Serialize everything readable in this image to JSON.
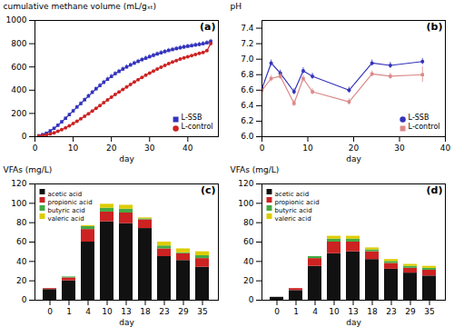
{
  "chart_data": [
    {
      "type": "line",
      "title": "(a)",
      "xlabel": "day",
      "ylabel": "cumulative methane volume (mL/gₓₜ)",
      "xlim": [
        0,
        48
      ],
      "xticks": [
        0,
        10,
        20,
        30,
        40
      ],
      "ylim": [
        0,
        1000
      ],
      "yticks": [
        0,
        200,
        400,
        600,
        800,
        1000
      ],
      "legend": "lower right",
      "series": [
        {
          "name": "L-SSB",
          "color": "#3333bb",
          "marker": "square",
          "x": [
            1,
            2,
            3,
            4,
            5,
            6,
            7,
            8,
            9,
            10,
            11,
            12,
            13,
            14,
            15,
            16,
            17,
            18,
            19,
            20,
            21,
            22,
            23,
            24,
            25,
            26,
            27,
            28,
            29,
            30,
            31,
            32,
            33,
            34,
            35,
            36,
            37,
            38,
            39,
            40,
            41,
            42,
            43,
            44,
            45,
            46
          ],
          "values": [
            8,
            18,
            30,
            50,
            72,
            98,
            128,
            158,
            190,
            222,
            255,
            285,
            318,
            350,
            382,
            412,
            440,
            468,
            494,
            518,
            542,
            562,
            582,
            600,
            617,
            633,
            648,
            663,
            675,
            688,
            700,
            712,
            722,
            732,
            742,
            750,
            758,
            765,
            772,
            778,
            783,
            789,
            794,
            800,
            808,
            820
          ],
          "errors": [
            3,
            4,
            5,
            7,
            8,
            9,
            11,
            12,
            13,
            14,
            15,
            16,
            16,
            17,
            17,
            17,
            18,
            18,
            18,
            18,
            18,
            18,
            18,
            18,
            18,
            18,
            18,
            18,
            18,
            18,
            18,
            18,
            18,
            18,
            18,
            18,
            18,
            18,
            18,
            18,
            18,
            18,
            18,
            18,
            18,
            18
          ]
        },
        {
          "name": "L-control",
          "color": "#cc2222",
          "marker": "circle",
          "x": [
            1,
            2,
            3,
            4,
            5,
            6,
            7,
            8,
            9,
            10,
            11,
            12,
            13,
            14,
            15,
            16,
            17,
            18,
            19,
            20,
            21,
            22,
            23,
            24,
            25,
            26,
            27,
            28,
            29,
            30,
            31,
            32,
            33,
            34,
            35,
            36,
            37,
            38,
            39,
            40,
            41,
            42,
            43,
            44,
            45,
            46
          ],
          "values": [
            5,
            10,
            16,
            24,
            34,
            46,
            60,
            76,
            94,
            113,
            133,
            154,
            176,
            198,
            221,
            244,
            268,
            292,
            316,
            340,
            363,
            385,
            407,
            428,
            449,
            470,
            490,
            510,
            529,
            547,
            565,
            582,
            598,
            613,
            628,
            642,
            655,
            667,
            678,
            688,
            698,
            707,
            716,
            724,
            740,
            800
          ],
          "errors": [
            1,
            2,
            2,
            3,
            3,
            3,
            3,
            4,
            4,
            4,
            4,
            4,
            4,
            4,
            4,
            4,
            4,
            4,
            4,
            4,
            4,
            4,
            4,
            4,
            4,
            4,
            4,
            4,
            4,
            4,
            4,
            4,
            4,
            4,
            4,
            4,
            4,
            4,
            4,
            4,
            4,
            4,
            4,
            4,
            4,
            4
          ]
        }
      ]
    },
    {
      "type": "line",
      "title": "(b)",
      "xlabel": "day",
      "ylabel": "pH",
      "xlim": [
        0,
        40
      ],
      "xticks": [
        0,
        10,
        20,
        30,
        40
      ],
      "ylim": [
        6.0,
        7.5
      ],
      "yticks": [
        {
          "value": 6,
          "label": "6.0"
        },
        6.2,
        6.4,
        6.6,
        6.8,
        {
          "value": 7,
          "label": "7.0"
        },
        7.2,
        7.4
      ],
      "legend": "lower right",
      "series": [
        {
          "name": "L-SSB",
          "color": "#3333bb",
          "marker": "circle",
          "x": [
            0,
            2,
            4,
            7,
            9,
            11,
            19,
            24,
            28,
            35
          ],
          "values": [
            6.62,
            6.95,
            6.82,
            6.58,
            6.85,
            6.78,
            6.6,
            6.95,
            6.92,
            6.97
          ],
          "errors": [
            0.04,
            0.04,
            0.04,
            0.04,
            0.04,
            0.04,
            0.04,
            0.04,
            0.04,
            0.04
          ]
        },
        {
          "name": "L-control",
          "color": "#dd8888",
          "marker": "square",
          "x": [
            0,
            2,
            4,
            7,
            9,
            11,
            19,
            24,
            28,
            35
          ],
          "values": [
            6.6,
            6.75,
            6.78,
            6.43,
            6.75,
            6.58,
            6.45,
            6.81,
            6.78,
            6.8
          ],
          "errors": [
            0.04,
            0.04,
            0.04,
            0.04,
            0.04,
            0.04,
            0.04,
            0.04,
            0.04,
            0.1
          ]
        }
      ]
    },
    {
      "type": "bar",
      "stacked": true,
      "title": "(c)",
      "xlabel": "day",
      "ylabel": "VFAs (mg/L)",
      "categories": [
        "0",
        "1",
        "4",
        "10",
        "13",
        "18",
        "23",
        "29",
        "35"
      ],
      "ylim": [
        0,
        120
      ],
      "yticks": [
        0,
        20,
        40,
        60,
        80,
        100,
        120
      ],
      "legend": "upper left",
      "series": [
        {
          "name": "acetic acid",
          "color": "#111111",
          "values": [
            11,
            20,
            60,
            81,
            79,
            74,
            45,
            41,
            34
          ]
        },
        {
          "name": "propionic acid",
          "color": "#cc2222",
          "values": [
            1,
            3,
            13,
            10,
            11,
            9,
            8,
            7,
            9
          ]
        },
        {
          "name": "butyric acid",
          "color": "#44aa44",
          "values": [
            0,
            1,
            3,
            4,
            4,
            1,
            3,
            1,
            3
          ]
        },
        {
          "name": "valeric acid",
          "color": "#ddcc00",
          "values": [
            0,
            0,
            1,
            4,
            4,
            1,
            4,
            4,
            4
          ]
        }
      ]
    },
    {
      "type": "bar",
      "stacked": true,
      "title": "(d)",
      "xlabel": "day",
      "ylabel": "VFAs (mg/L)",
      "categories": [
        "0",
        "1",
        "4",
        "10",
        "13",
        "18",
        "23",
        "29",
        "35"
      ],
      "ylim": [
        0,
        120
      ],
      "yticks": [
        0,
        20,
        40,
        60,
        80,
        100,
        120
      ],
      "legend": "upper left",
      "series": [
        {
          "name": "acetic acid",
          "color": "#111111",
          "values": [
            3,
            10,
            35,
            48,
            50,
            42,
            32,
            28,
            25
          ]
        },
        {
          "name": "propionic acid",
          "color": "#cc2222",
          "values": [
            0,
            2,
            8,
            12,
            10,
            8,
            6,
            5,
            6
          ]
        },
        {
          "name": "butyric acid",
          "color": "#44aa44",
          "values": [
            0,
            0,
            2,
            3,
            3,
            2,
            2,
            2,
            2
          ]
        },
        {
          "name": "valeric acid",
          "color": "#ddcc00",
          "values": [
            0,
            0,
            0,
            3,
            3,
            2,
            2,
            2,
            2
          ]
        }
      ]
    }
  ]
}
